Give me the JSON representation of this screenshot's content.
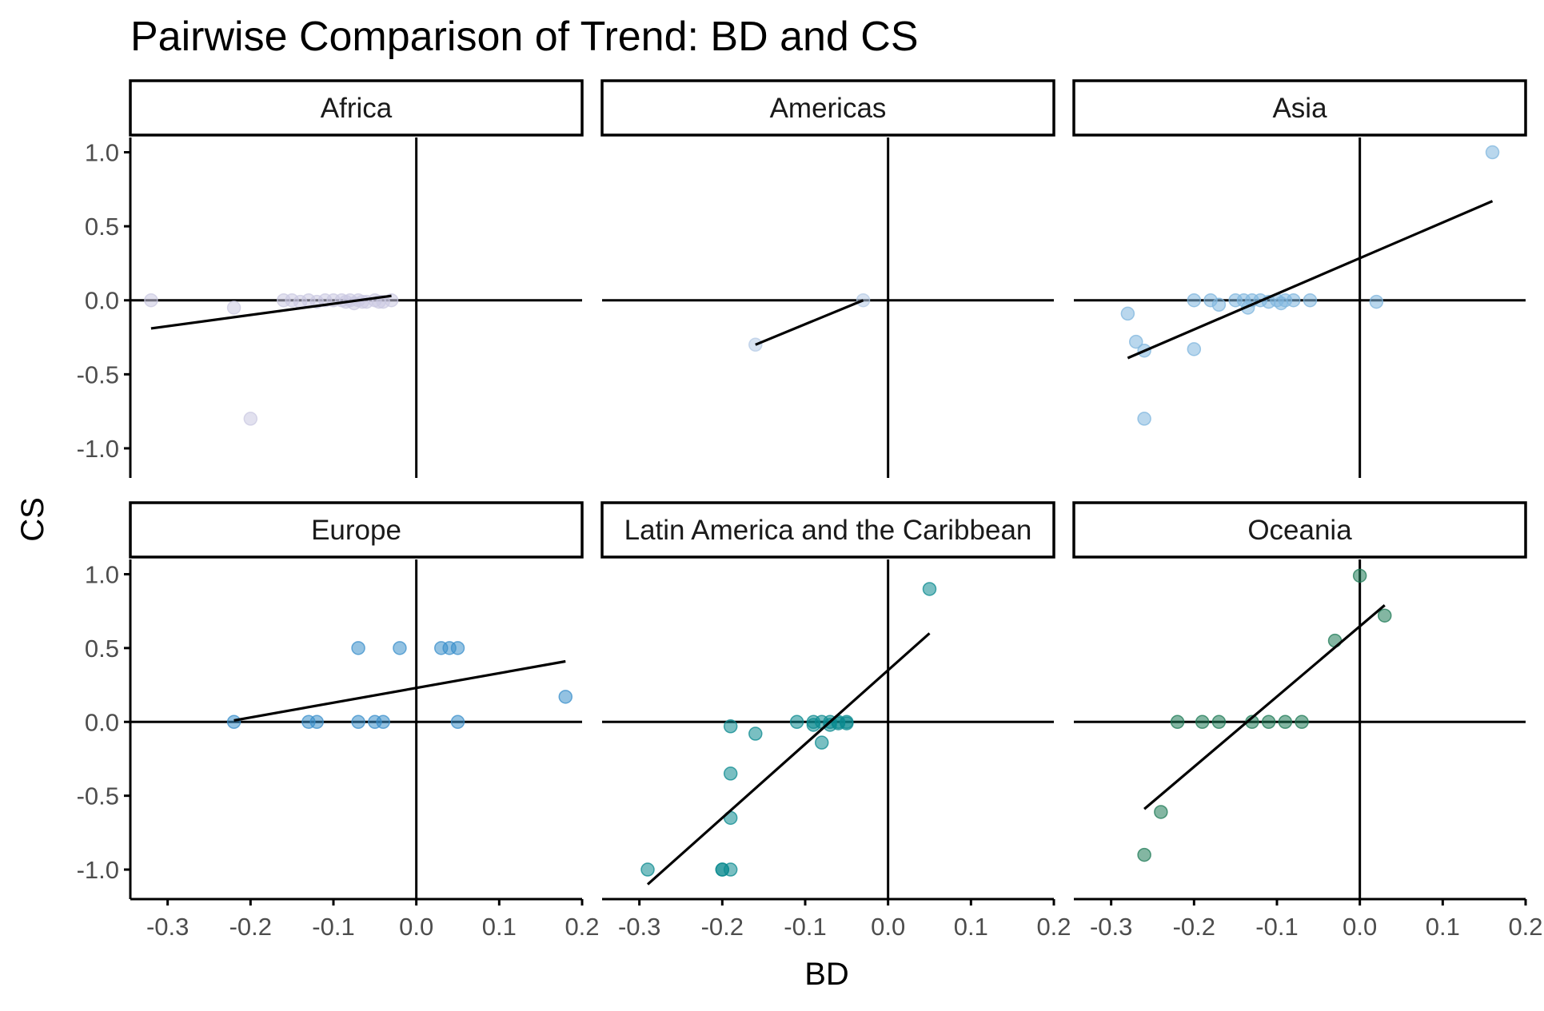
{
  "chart_data": {
    "type": "scatter",
    "title": "Pairwise Comparison of Trend: BD and CS",
    "xlabel": "BD",
    "ylabel": "CS",
    "xlim": [
      -0.345,
      0.2
    ],
    "ylim": [
      -1.2,
      1.1
    ],
    "x_ticks": [
      -0.3,
      -0.2,
      -0.1,
      0.0,
      0.1,
      0.2
    ],
    "x_tick_labels": [
      "-0.3",
      "-0.2",
      "-0.1",
      "0.0",
      "0.1",
      "0.2"
    ],
    "y_ticks": [
      -1.0,
      -0.5,
      0.0,
      0.5,
      1.0
    ],
    "y_tick_labels": [
      "-1.0",
      "-0.5",
      "0.0",
      "0.5",
      "1.0"
    ],
    "grid": false,
    "legend": "none",
    "reference_lines": {
      "x": 0,
      "y": 0
    },
    "point_opacity": 0.55,
    "panels": [
      {
        "name": "Africa",
        "color": "#cbc9e2",
        "points": [
          {
            "x": -0.32,
            "y": 0.0
          },
          {
            "x": -0.22,
            "y": -0.05
          },
          {
            "x": -0.2,
            "y": -0.8
          },
          {
            "x": -0.16,
            "y": 0.0
          },
          {
            "x": -0.15,
            "y": 0.0
          },
          {
            "x": -0.14,
            "y": -0.01
          },
          {
            "x": -0.13,
            "y": 0.0
          },
          {
            "x": -0.12,
            "y": -0.01
          },
          {
            "x": -0.11,
            "y": 0.0
          },
          {
            "x": -0.1,
            "y": 0.0
          },
          {
            "x": -0.09,
            "y": 0.0
          },
          {
            "x": -0.085,
            "y": -0.01
          },
          {
            "x": -0.08,
            "y": 0.0
          },
          {
            "x": -0.075,
            "y": -0.02
          },
          {
            "x": -0.07,
            "y": 0.0
          },
          {
            "x": -0.065,
            "y": -0.01
          },
          {
            "x": -0.06,
            "y": -0.01
          },
          {
            "x": -0.05,
            "y": 0.0
          },
          {
            "x": -0.045,
            "y": -0.01
          },
          {
            "x": -0.04,
            "y": -0.01
          },
          {
            "x": -0.03,
            "y": 0.0
          }
        ],
        "trend": {
          "x": [
            -0.32,
            -0.03
          ],
          "y": [
            -0.19,
            0.03
          ]
        }
      },
      {
        "name": "Americas",
        "color": "#b6cbe5",
        "points": [
          {
            "x": -0.16,
            "y": -0.3
          },
          {
            "x": -0.03,
            "y": 0.0
          }
        ],
        "trend": {
          "x": [
            -0.16,
            -0.03
          ],
          "y": [
            -0.3,
            0.0
          ]
        }
      },
      {
        "name": "Asia",
        "color": "#7fb6de",
        "points": [
          {
            "x": -0.28,
            "y": -0.09
          },
          {
            "x": -0.27,
            "y": -0.28
          },
          {
            "x": -0.26,
            "y": -0.34
          },
          {
            "x": -0.26,
            "y": -0.8
          },
          {
            "x": -0.2,
            "y": 0.0
          },
          {
            "x": -0.2,
            "y": -0.33
          },
          {
            "x": -0.18,
            "y": 0.0
          },
          {
            "x": -0.17,
            "y": -0.03
          },
          {
            "x": -0.15,
            "y": 0.0
          },
          {
            "x": -0.14,
            "y": 0.0
          },
          {
            "x": -0.135,
            "y": -0.05
          },
          {
            "x": -0.13,
            "y": 0.0
          },
          {
            "x": -0.12,
            "y": 0.0
          },
          {
            "x": -0.11,
            "y": -0.01
          },
          {
            "x": -0.1,
            "y": 0.0
          },
          {
            "x": -0.095,
            "y": -0.02
          },
          {
            "x": -0.09,
            "y": 0.0
          },
          {
            "x": -0.08,
            "y": 0.0
          },
          {
            "x": -0.06,
            "y": 0.0
          },
          {
            "x": 0.02,
            "y": -0.01
          },
          {
            "x": 0.16,
            "y": 1.0
          }
        ],
        "trend": {
          "x": [
            -0.28,
            0.16
          ],
          "y": [
            -0.39,
            0.67
          ]
        }
      },
      {
        "name": "Europe",
        "color": "#3b8fcb",
        "points": [
          {
            "x": -0.22,
            "y": 0.0
          },
          {
            "x": -0.13,
            "y": 0.0
          },
          {
            "x": -0.12,
            "y": 0.0
          },
          {
            "x": -0.07,
            "y": 0.5
          },
          {
            "x": -0.07,
            "y": 0.0
          },
          {
            "x": -0.05,
            "y": 0.0
          },
          {
            "x": -0.04,
            "y": 0.0
          },
          {
            "x": -0.02,
            "y": 0.5
          },
          {
            "x": 0.03,
            "y": 0.5
          },
          {
            "x": 0.04,
            "y": 0.5
          },
          {
            "x": 0.05,
            "y": 0.5
          },
          {
            "x": 0.05,
            "y": 0.0
          },
          {
            "x": 0.18,
            "y": 0.17
          }
        ],
        "trend": {
          "x": [
            -0.22,
            0.18
          ],
          "y": [
            0.01,
            0.41
          ]
        }
      },
      {
        "name": "Latin America and the Caribbean",
        "color": "#0b8a8f",
        "points": [
          {
            "x": -0.29,
            "y": -1.0
          },
          {
            "x": -0.2,
            "y": -1.0
          },
          {
            "x": -0.2,
            "y": -1.0
          },
          {
            "x": -0.19,
            "y": -1.0
          },
          {
            "x": -0.19,
            "y": -0.03
          },
          {
            "x": -0.19,
            "y": -0.35
          },
          {
            "x": -0.19,
            "y": -0.65
          },
          {
            "x": -0.16,
            "y": -0.08
          },
          {
            "x": -0.11,
            "y": 0.0
          },
          {
            "x": -0.09,
            "y": 0.0
          },
          {
            "x": -0.09,
            "y": -0.02
          },
          {
            "x": -0.08,
            "y": 0.0
          },
          {
            "x": -0.08,
            "y": -0.14
          },
          {
            "x": -0.07,
            "y": 0.0
          },
          {
            "x": -0.07,
            "y": -0.02
          },
          {
            "x": -0.06,
            "y": 0.0
          },
          {
            "x": -0.06,
            "y": -0.01
          },
          {
            "x": -0.05,
            "y": 0.0
          },
          {
            "x": -0.05,
            "y": -0.01
          },
          {
            "x": 0.05,
            "y": 0.9
          }
        ],
        "trend": {
          "x": [
            -0.29,
            0.05
          ],
          "y": [
            -1.1,
            0.6
          ]
        }
      },
      {
        "name": "Oceania",
        "color": "#1d7a56",
        "points": [
          {
            "x": -0.26,
            "y": -0.9
          },
          {
            "x": -0.24,
            "y": -0.61
          },
          {
            "x": -0.22,
            "y": 0.0
          },
          {
            "x": -0.19,
            "y": 0.0
          },
          {
            "x": -0.17,
            "y": 0.0
          },
          {
            "x": -0.13,
            "y": 0.0
          },
          {
            "x": -0.11,
            "y": 0.0
          },
          {
            "x": -0.09,
            "y": 0.0
          },
          {
            "x": -0.07,
            "y": 0.0
          },
          {
            "x": -0.03,
            "y": 0.55
          },
          {
            "x": 0.0,
            "y": 0.99
          },
          {
            "x": 0.03,
            "y": 0.72
          }
        ],
        "trend": {
          "x": [
            -0.26,
            0.03
          ],
          "y": [
            -0.59,
            0.79
          ]
        }
      }
    ]
  }
}
